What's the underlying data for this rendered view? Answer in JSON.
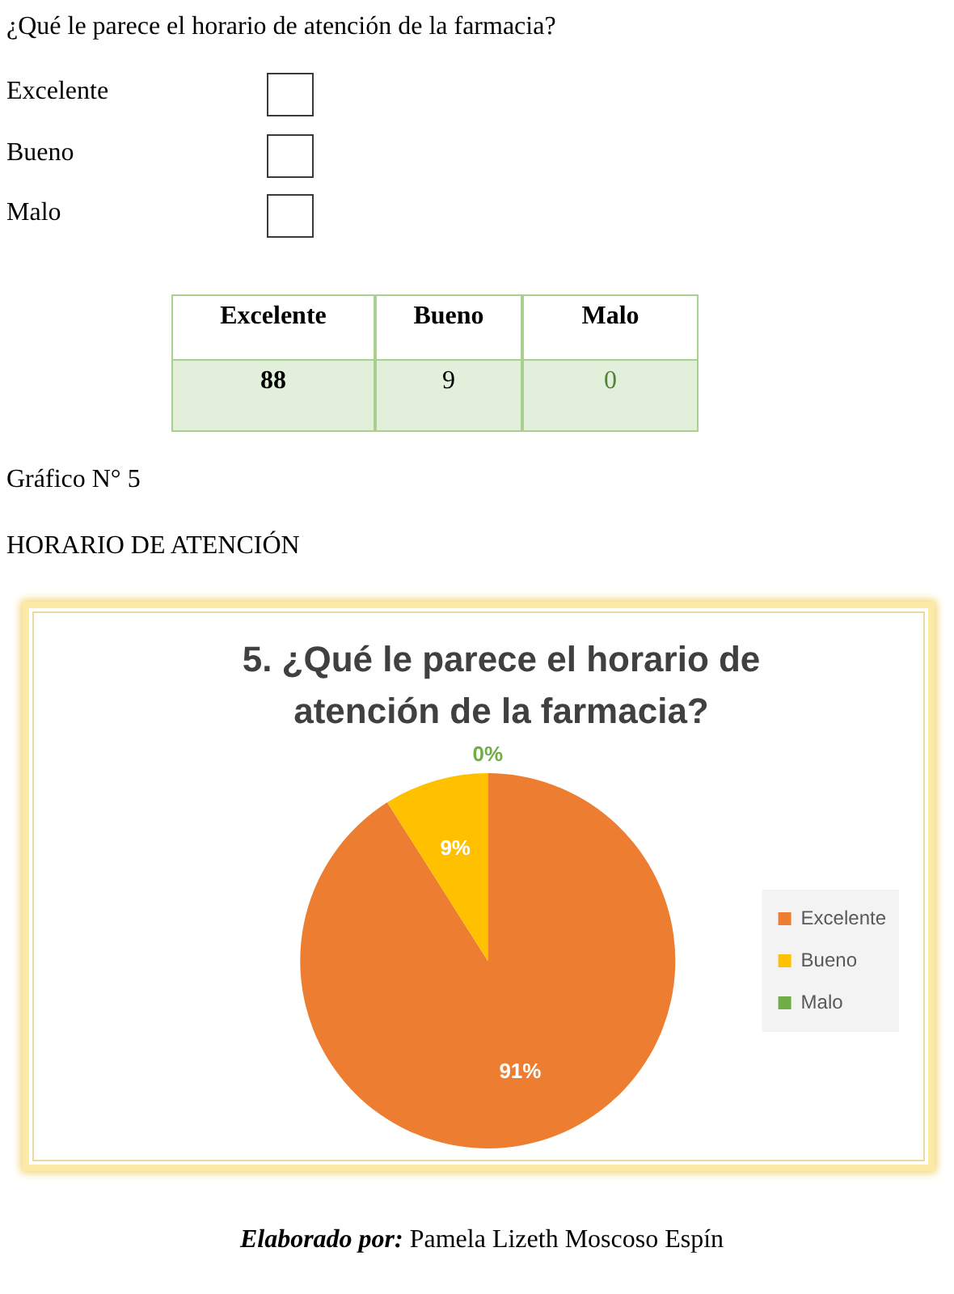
{
  "chart_data": [
    {
      "type": "other",
      "title": "¿Qué le parece el horario de atención de la farmacia?",
      "categories": [
        "Excelente",
        "Bueno",
        "Malo"
      ],
      "values": [
        88,
        9,
        0
      ],
      "data_labels": true
    },
    {
      "type": "pie",
      "title": "5. ¿Qué le parece el horario de atención de la farmacia?",
      "categories": [
        "Excelente",
        "Bueno",
        "Malo"
      ],
      "values": [
        91,
        9,
        0
      ],
      "colors": [
        "#ed7d31",
        "#ffc000",
        "#70ad47"
      ],
      "value_labels": [
        "91%",
        "9%",
        "0%"
      ],
      "legend": "right",
      "annotations": [
        "Gráfico N° 5",
        "HORARIO DE ATENCIÓN",
        "Elaborado por: Pamela Lizeth Moscoso Espín"
      ]
    }
  ]
}
